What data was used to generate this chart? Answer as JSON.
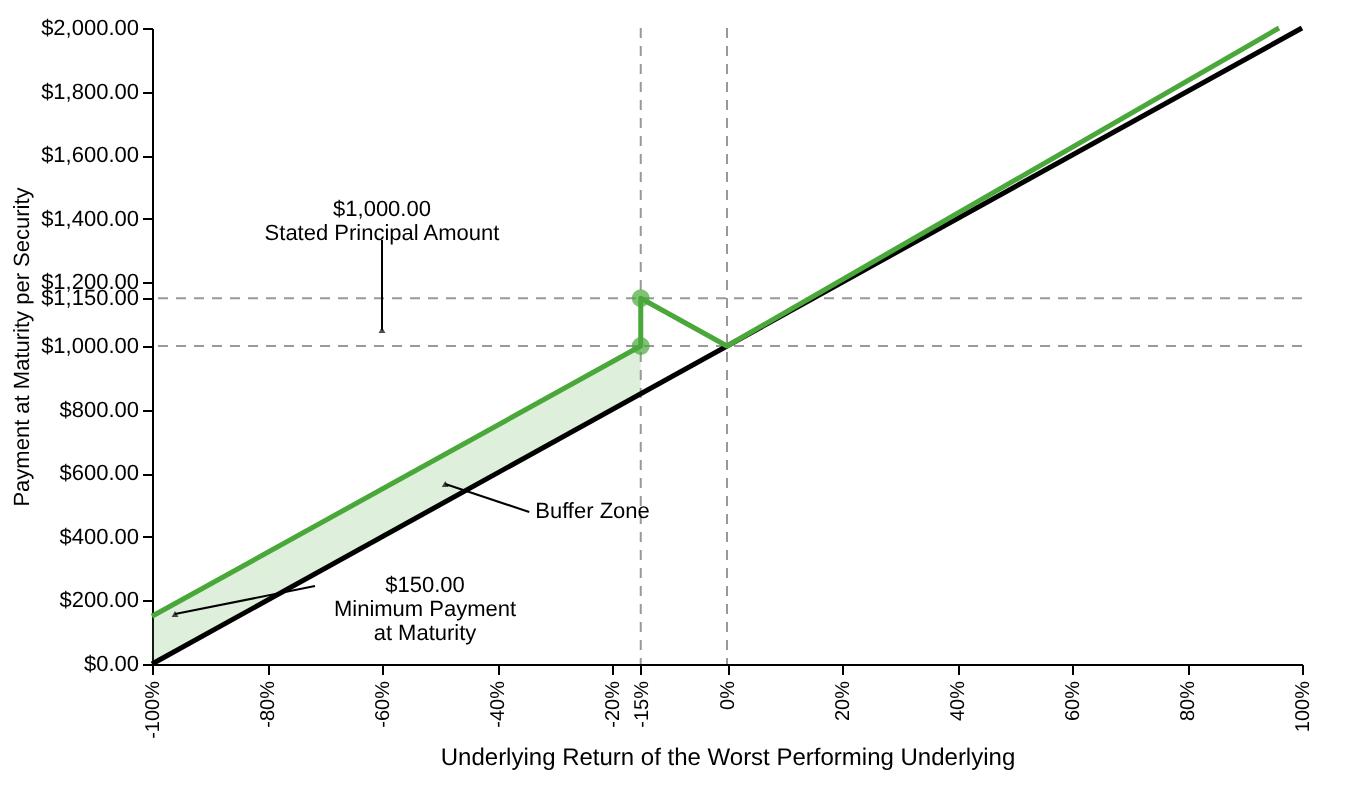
{
  "chart_data": {
    "type": "line",
    "xlabel": "Underlying Return of the Worst Performing Underlying",
    "ylabel": "Payment at Maturity per Security",
    "xlim": [
      -100,
      100
    ],
    "ylim": [
      0,
      2000
    ],
    "xticks": [
      {
        "value": -100,
        "label": "-100%"
      },
      {
        "value": -80,
        "label": "-80%"
      },
      {
        "value": -60,
        "label": "-60%"
      },
      {
        "value": -40,
        "label": "-40%"
      },
      {
        "value": -20,
        "label": "-20%"
      },
      {
        "value": -15,
        "label": "-15%"
      },
      {
        "value": 0,
        "label": "0%"
      },
      {
        "value": 20,
        "label": "20%"
      },
      {
        "value": 40,
        "label": "40%"
      },
      {
        "value": 60,
        "label": "60%"
      },
      {
        "value": 80,
        "label": "80%"
      },
      {
        "value": 100,
        "label": "100%"
      }
    ],
    "yticks": [
      {
        "value": 0,
        "label": "$0.00"
      },
      {
        "value": 200,
        "label": "$200.00"
      },
      {
        "value": 400,
        "label": "$400.00"
      },
      {
        "value": 600,
        "label": "$600.00"
      },
      {
        "value": 800,
        "label": "$800.00"
      },
      {
        "value": 1000,
        "label": "$1,000.00"
      },
      {
        "value": 1150,
        "label": "$1,150.00"
      },
      {
        "value": 1200,
        "label": "$1,200.00"
      },
      {
        "value": 1400,
        "label": "$1,400.00"
      },
      {
        "value": 1600,
        "label": "$1,600.00"
      },
      {
        "value": 1800,
        "label": "$1,800.00"
      },
      {
        "value": 2000,
        "label": "$2,000.00"
      }
    ],
    "grid": false,
    "series": [
      {
        "type": "line",
        "color": "#000000",
        "x": [
          -100,
          100
        ],
        "values": [
          0,
          2000
        ]
      },
      {
        "type": "line",
        "color": "#4aa83a",
        "x": [
          -100,
          -15,
          -15,
          0,
          96
        ],
        "values": [
          150,
          1000,
          1150,
          1000,
          2000
        ],
        "lower": [
          0,
          850,
          null,
          null,
          null
        ],
        "upper": [
          150,
          1000,
          null,
          null,
          null
        ]
      },
      {
        "type": "scatter",
        "color": "#4aa83a",
        "marker": "circle",
        "x": [
          -15,
          -15
        ],
        "values": [
          1150,
          1000
        ]
      }
    ],
    "ref_lines": [
      {
        "axis": "y",
        "value": 1000,
        "color": "#999999",
        "line_style": "dashed"
      },
      {
        "axis": "y",
        "value": 1150,
        "color": "#999999",
        "line_style": "dashed"
      },
      {
        "axis": "x",
        "value": -15,
        "color": "#999999",
        "line_style": "dashed"
      },
      {
        "axis": "x",
        "value": 0,
        "color": "#999999",
        "line_style": "dashed"
      }
    ],
    "annotations": [
      {
        "text": "$1,000.00\nStated Principal Amount",
        "x": -60,
        "y": 1050
      },
      {
        "text": "Buffer Zone",
        "x": -49,
        "y": 566
      },
      {
        "text": "$150.00\nMinimum Payment\nat Maturity",
        "x": -96,
        "y": 157
      }
    ]
  }
}
